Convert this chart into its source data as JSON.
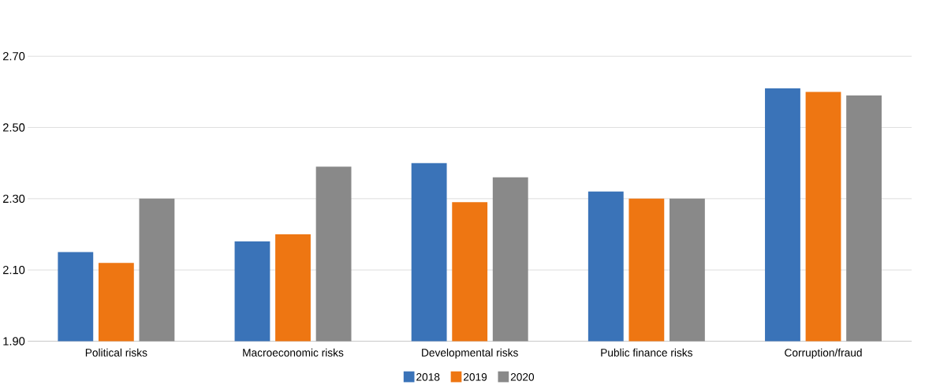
{
  "chart_data": {
    "type": "bar",
    "categories": [
      "Political risks",
      "Macroeconomic risks",
      "Developmental risks",
      "Public finance risks",
      "Corruption/fraud"
    ],
    "series": [
      {
        "name": "2018",
        "color": "#3a73b8",
        "values": [
          2.15,
          2.18,
          2.4,
          2.32,
          2.61
        ]
      },
      {
        "name": "2019",
        "color": "#ee7612",
        "values": [
          2.12,
          2.2,
          2.29,
          2.3,
          2.6
        ]
      },
      {
        "name": "2020",
        "color": "#898989",
        "values": [
          2.3,
          2.39,
          2.36,
          2.3,
          2.59
        ]
      }
    ],
    "ylim": [
      1.9,
      2.7
    ],
    "yticks": [
      {
        "value": 1.9,
        "label": "1.90"
      },
      {
        "value": 2.1,
        "label": "2.10"
      },
      {
        "value": 2.3,
        "label": "2.30"
      },
      {
        "value": 2.5,
        "label": "2.50"
      },
      {
        "value": 2.7,
        "label": "2.70"
      }
    ],
    "grid": "y",
    "legend": "bottom"
  }
}
